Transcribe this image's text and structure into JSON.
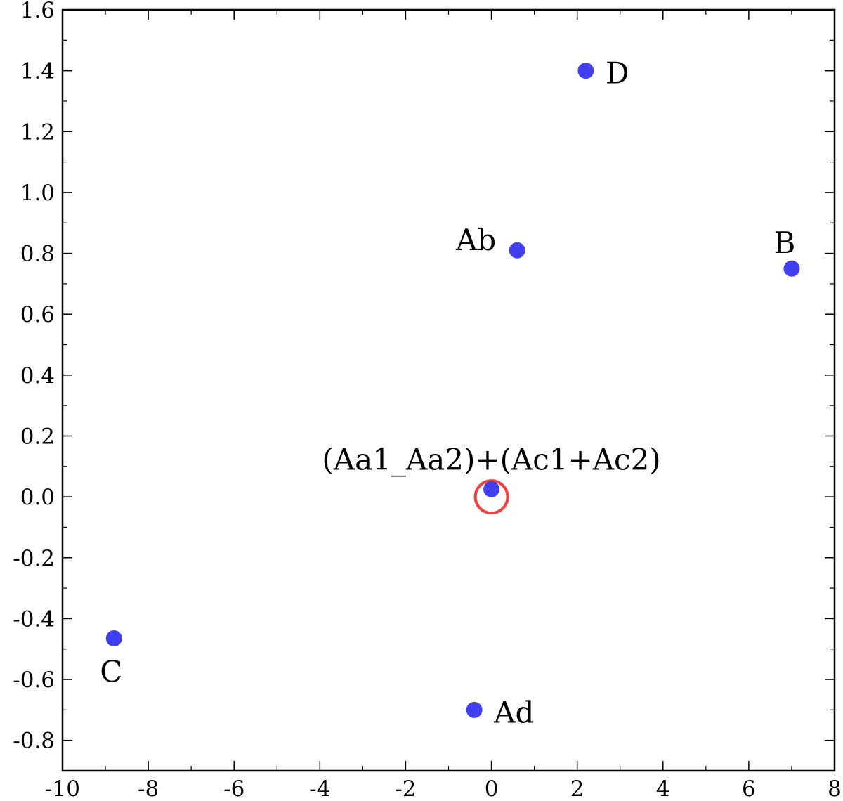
{
  "chart_data": {
    "type": "scatter",
    "title": "",
    "xlabel": "",
    "ylabel": "",
    "xlim": [
      -10,
      8
    ],
    "ylim": [
      -0.9,
      1.6
    ],
    "x_ticks": [
      -10,
      -8,
      -6,
      -4,
      -2,
      0,
      2,
      4,
      6,
      8
    ],
    "x_tick_labels": [
      "-10",
      "-8",
      "-6",
      "-4",
      "-2",
      "0",
      "2",
      "4",
      "6",
      "8"
    ],
    "y_ticks": [
      -0.8,
      -0.6,
      -0.4,
      -0.2,
      0.0,
      0.2,
      0.4,
      0.6,
      0.8,
      1.0,
      1.2,
      1.4,
      1.6
    ],
    "y_tick_labels": [
      "-0.8",
      "-0.6",
      "-0.4",
      "-0.2",
      "0.0",
      "0.2",
      "0.4",
      "0.6",
      "0.8",
      "1.0",
      "1.2",
      "1.4",
      "1.6"
    ],
    "x_minor_step": 1,
    "y_minor_step": 0.1,
    "grid": false,
    "point_color": "#4040f0",
    "marker_color": "#f04040",
    "points": [
      {
        "label": "(Aa1_Aa2)+(Ac1+Ac2)",
        "x": 0.0,
        "y": 0.025,
        "label_pos": "top"
      },
      {
        "label": "Ab",
        "x": 0.6,
        "y": 0.81,
        "label_pos": "left"
      },
      {
        "label": "B",
        "x": 7.0,
        "y": 0.75,
        "label_pos": "top"
      },
      {
        "label": "C",
        "x": -8.8,
        "y": -0.465,
        "label_pos": "bottom"
      },
      {
        "label": "D",
        "x": 2.2,
        "y": 1.4,
        "label_pos": "right"
      },
      {
        "label": "Ad",
        "x": -0.4,
        "y": -0.7,
        "label_pos": "right"
      }
    ],
    "origin_marker": {
      "x": 0,
      "y": 0
    }
  }
}
